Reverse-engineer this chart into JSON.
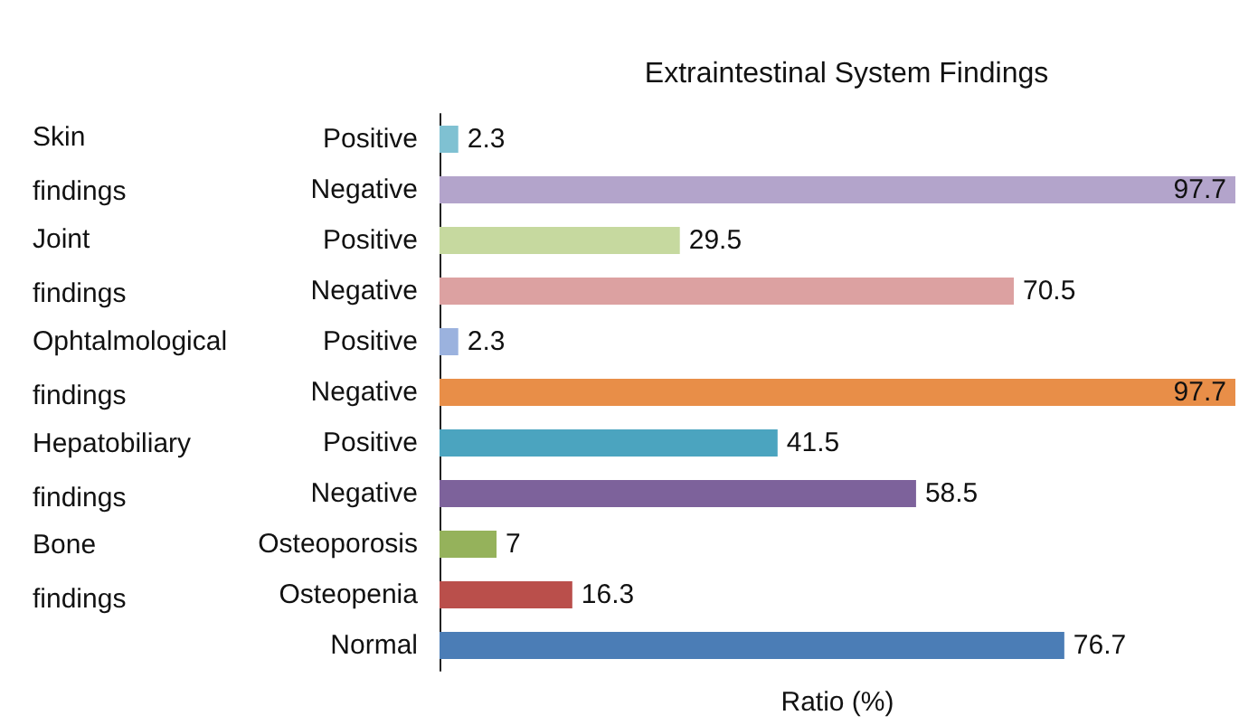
{
  "chart_data": {
    "type": "bar",
    "orientation": "horizontal",
    "title": "Extraintestinal System Findings",
    "xlabel": "Ratio (%)",
    "categories": [
      "Positive",
      "Negative",
      "Positive",
      "Negative",
      "Positive",
      "Negative",
      "Positive",
      "Negative",
      "Osteoporosis",
      "Osteopenia",
      "Normal"
    ],
    "values": [
      2.3,
      97.7,
      29.5,
      70.5,
      2.3,
      97.7,
      41.5,
      58.5,
      7,
      16.3,
      76.7
    ],
    "colors": [
      "#7fc1d2",
      "#b3a4cb",
      "#c6d99f",
      "#dca1a1",
      "#9bb2de",
      "#e88e48",
      "#4ba4bf",
      "#7d629b",
      "#95b25b",
      "#ba4f4b",
      "#4b7db6"
    ],
    "annotations": [
      "Skin findings",
      "Joint findings",
      "Ophtalmological findings",
      "Hepatobiliary findings",
      "Bone findings"
    ],
    "data_labels": true,
    "grid": false
  }
}
